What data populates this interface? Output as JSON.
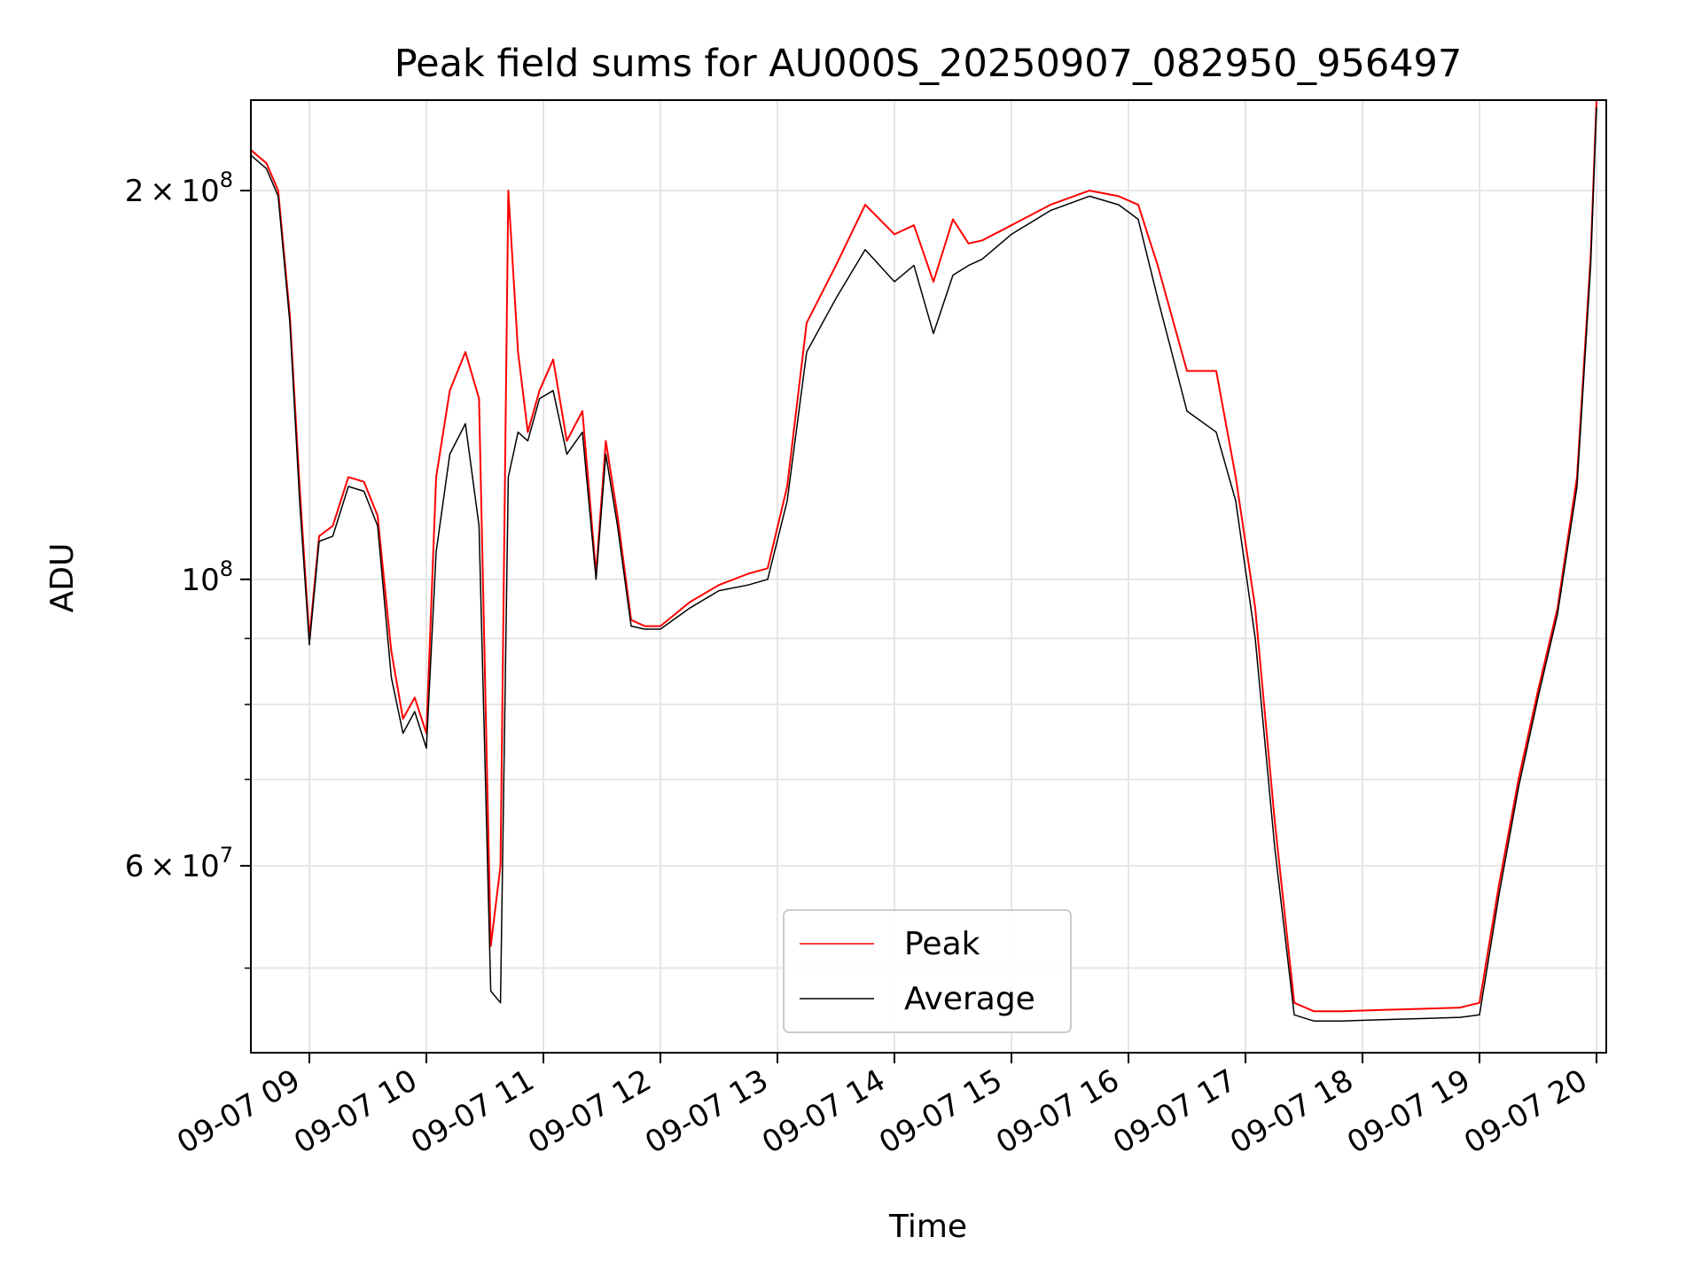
{
  "chart_data": {
    "type": "line",
    "title": "Peak field sums for AU000S_20250907_082950_956497",
    "xlabel": "Time",
    "ylabel": "ADU",
    "y_scale": "log",
    "xlim": [
      "09-07 08:30",
      "09-07 20:05"
    ],
    "ylim": [
      43000000,
      235000000
    ],
    "grid": true,
    "legend": {
      "placement": "lower-center",
      "entries": [
        "Peak",
        "Average"
      ]
    },
    "x_ticks": [
      "09-07 09",
      "09-07 10",
      "09-07 11",
      "09-07 12",
      "09-07 13",
      "09-07 14",
      "09-07 15",
      "09-07 16",
      "09-07 17",
      "09-07 18",
      "09-07 19",
      "09-07 20"
    ],
    "y_ticks_major": [
      {
        "value": 60000000,
        "mantissa": "6",
        "exp": "7"
      },
      {
        "value": 100000000,
        "mantissa": "",
        "exp": "8"
      },
      {
        "value": 200000000,
        "mantissa": "2",
        "exp": "8"
      }
    ],
    "y_ticks_minor": [
      50000000,
      70000000,
      80000000,
      90000000,
      300000000
    ],
    "colors": {
      "Peak": "#ff0000",
      "Average": "#000000"
    },
    "series": [
      {
        "name": "Peak",
        "x": [
          "09-07 08:30",
          "09-07 08:38",
          "09-07 08:44",
          "09-07 08:50",
          "09-07 08:55",
          "09-07 09:00",
          "09-07 09:05",
          "09-07 09:12",
          "09-07 09:20",
          "09-07 09:28",
          "09-07 09:35",
          "09-07 09:42",
          "09-07 09:48",
          "09-07 09:54",
          "09-07 10:00",
          "09-07 10:05",
          "09-07 10:12",
          "09-07 10:20",
          "09-07 10:27",
          "09-07 10:33",
          "09-07 10:38",
          "09-07 10:42",
          "09-07 10:47",
          "09-07 10:52",
          "09-07 10:58",
          "09-07 11:05",
          "09-07 11:12",
          "09-07 11:20",
          "09-07 11:27",
          "09-07 11:32",
          "09-07 11:38",
          "09-07 11:45",
          "09-07 11:52",
          "09-07 12:00",
          "09-07 12:15",
          "09-07 12:30",
          "09-07 12:45",
          "09-07 12:55",
          "09-07 13:05",
          "09-07 13:15",
          "09-07 13:30",
          "09-07 13:45",
          "09-07 14:00",
          "09-07 14:10",
          "09-07 14:20",
          "09-07 14:30",
          "09-07 14:38",
          "09-07 14:45",
          "09-07 15:00",
          "09-07 15:20",
          "09-07 15:40",
          "09-07 15:55",
          "09-07 16:05",
          "09-07 16:15",
          "09-07 16:30",
          "09-07 16:45",
          "09-07 16:55",
          "09-07 17:05",
          "09-07 17:15",
          "09-07 17:25",
          "09-07 17:35",
          "09-07 17:50",
          "09-07 18:10",
          "09-07 18:30",
          "09-07 18:50",
          "09-07 19:00",
          "09-07 19:10",
          "09-07 19:20",
          "09-07 19:30",
          "09-07 19:40",
          "09-07 19:50",
          "09-07 19:57",
          "09-07 20:00"
        ],
        "values": [
          215000000,
          210000000,
          200000000,
          160000000,
          118000000,
          90000000,
          108000000,
          110000000,
          120000000,
          119000000,
          112000000,
          88000000,
          78000000,
          81000000,
          76000000,
          120000000,
          140000000,
          150000000,
          138000000,
          52000000,
          60000000,
          200000000,
          150000000,
          130000000,
          140000000,
          148000000,
          128000000,
          135000000,
          101000000,
          128000000,
          112000000,
          93000000,
          92000000,
          92000000,
          96000000,
          99000000,
          101000000,
          102000000,
          118000000,
          158000000,
          175000000,
          195000000,
          185000000,
          188000000,
          170000000,
          190000000,
          182000000,
          183000000,
          188000000,
          195000000,
          200000000,
          198000000,
          195000000,
          175000000,
          145000000,
          145000000,
          120000000,
          95000000,
          65000000,
          47000000,
          46300000,
          46300000,
          46400000,
          46500000,
          46600000,
          47000000,
          58000000,
          70000000,
          82000000,
          95000000,
          120000000,
          178000000,
          235000000
        ]
      },
      {
        "name": "Average",
        "x": [
          "09-07 08:30",
          "09-07 08:38",
          "09-07 08:44",
          "09-07 08:50",
          "09-07 08:55",
          "09-07 09:00",
          "09-07 09:05",
          "09-07 09:12",
          "09-07 09:20",
          "09-07 09:28",
          "09-07 09:35",
          "09-07 09:42",
          "09-07 09:48",
          "09-07 09:54",
          "09-07 10:00",
          "09-07 10:05",
          "09-07 10:12",
          "09-07 10:20",
          "09-07 10:27",
          "09-07 10:33",
          "09-07 10:38",
          "09-07 10:42",
          "09-07 10:47",
          "09-07 10:52",
          "09-07 10:58",
          "09-07 11:05",
          "09-07 11:12",
          "09-07 11:20",
          "09-07 11:27",
          "09-07 11:32",
          "09-07 11:38",
          "09-07 11:45",
          "09-07 11:52",
          "09-07 12:00",
          "09-07 12:15",
          "09-07 12:30",
          "09-07 12:45",
          "09-07 12:55",
          "09-07 13:05",
          "09-07 13:15",
          "09-07 13:30",
          "09-07 13:45",
          "09-07 14:00",
          "09-07 14:10",
          "09-07 14:20",
          "09-07 14:30",
          "09-07 14:38",
          "09-07 14:45",
          "09-07 15:00",
          "09-07 15:20",
          "09-07 15:40",
          "09-07 15:55",
          "09-07 16:05",
          "09-07 16:15",
          "09-07 16:30",
          "09-07 16:45",
          "09-07 16:55",
          "09-07 17:05",
          "09-07 17:15",
          "09-07 17:25",
          "09-07 17:35",
          "09-07 17:50",
          "09-07 18:10",
          "09-07 18:30",
          "09-07 18:50",
          "09-07 19:00",
          "09-07 19:10",
          "09-07 19:20",
          "09-07 19:30",
          "09-07 19:40",
          "09-07 19:50",
          "09-07 19:57",
          "09-07 20:00"
        ],
        "values": [
          213000000,
          208000000,
          198000000,
          158000000,
          115000000,
          89000000,
          107000000,
          108000000,
          118000000,
          117000000,
          110000000,
          84000000,
          76000000,
          79000000,
          74000000,
          105000000,
          125000000,
          132000000,
          110000000,
          48000000,
          47000000,
          120000000,
          130000000,
          128000000,
          138000000,
          140000000,
          125000000,
          130000000,
          100000000,
          125000000,
          110000000,
          92000000,
          91500000,
          91500000,
          95000000,
          98000000,
          99000000,
          100000000,
          115000000,
          150000000,
          165000000,
          180000000,
          170000000,
          175000000,
          155000000,
          172000000,
          175000000,
          177000000,
          185000000,
          193000000,
          198000000,
          195000000,
          190000000,
          165000000,
          135000000,
          130000000,
          115000000,
          90000000,
          62000000,
          46000000,
          45500000,
          45500000,
          45600000,
          45700000,
          45800000,
          46000000,
          57000000,
          69000000,
          81000000,
          94000000,
          118000000,
          175000000,
          232000000
        ]
      }
    ]
  }
}
